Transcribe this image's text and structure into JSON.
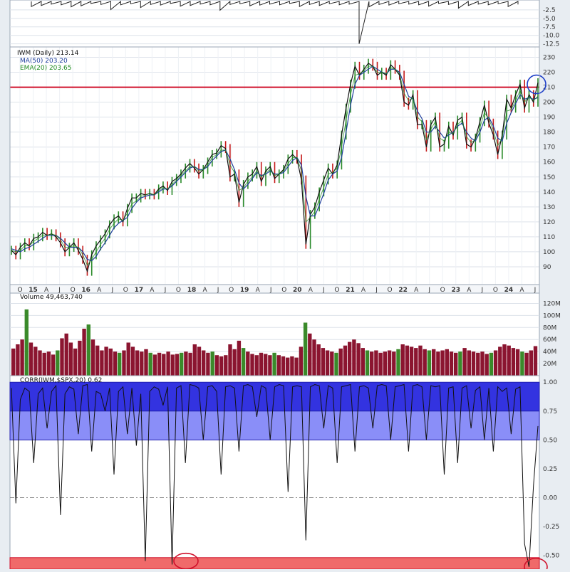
{
  "price_legend": {
    "main": "IWM (Daily) 213.14",
    "ma": "MA(50) 203.20",
    "ema": "EMA(20) 203.65"
  },
  "volume_legend": "Volume 49,463,740",
  "corr_legend": "CORR(IWM,$SPX,20) 0.62",
  "colors": {
    "panel_bg": "#ffffff",
    "outer_bg": "#e8edf2",
    "grid": "#dde2ea",
    "price_line": "#111111",
    "up_candle": "#2a8a2a",
    "down_candle": "#c41a1a",
    "ma_line": "#1f3f9c",
    "ema_line": "#1f8a1f",
    "resistance_line": "#d0112b",
    "highlight_circle_blue": "#1e3fc8",
    "highlight_circle_red": "#d0112b",
    "volume_bar": "#8b1530",
    "volume_up": "#3a8a2a",
    "corr_line": "#111111",
    "corr_band_strong": "#3333e0",
    "corr_band_mid": "#8a8ef8",
    "corr_band_low": "#f06a6a"
  },
  "chart_data": [
    {
      "type": "line",
      "panel": "price",
      "x": [
        "2014-09",
        "2014-10",
        "2014-11",
        "2014-12",
        "2015-01",
        "2015-02",
        "2015-03",
        "2015-04",
        "2015-05",
        "2015-06",
        "2015-07",
        "2015-08",
        "2015-09",
        "2015-10",
        "2015-11",
        "2015-12",
        "2016-01",
        "2016-02",
        "2016-03",
        "2016-04",
        "2016-05",
        "2016-06",
        "2016-07",
        "2016-08",
        "2016-09",
        "2016-10",
        "2016-11",
        "2016-12",
        "2017-01",
        "2017-02",
        "2017-03",
        "2017-04",
        "2017-05",
        "2017-06",
        "2017-07",
        "2017-08",
        "2017-09",
        "2017-10",
        "2017-11",
        "2017-12",
        "2018-01",
        "2018-02",
        "2018-03",
        "2018-04",
        "2018-05",
        "2018-06",
        "2018-07",
        "2018-08",
        "2018-09",
        "2018-10",
        "2018-11",
        "2018-12",
        "2019-01",
        "2019-02",
        "2019-03",
        "2019-04",
        "2019-05",
        "2019-06",
        "2019-07",
        "2019-08",
        "2019-09",
        "2019-10",
        "2019-11",
        "2019-12",
        "2020-01",
        "2020-02",
        "2020-03",
        "2020-04",
        "2020-05",
        "2020-06",
        "2020-07",
        "2020-08",
        "2020-09",
        "2020-10",
        "2020-11",
        "2020-12",
        "2021-01",
        "2021-02",
        "2021-03",
        "2021-04",
        "2021-05",
        "2021-06",
        "2021-07",
        "2021-08",
        "2021-09",
        "2021-10",
        "2021-11",
        "2021-12",
        "2022-01",
        "2022-02",
        "2022-03",
        "2022-04",
        "2022-05",
        "2022-06",
        "2022-07",
        "2022-08",
        "2022-09",
        "2022-10",
        "2022-11",
        "2022-12",
        "2023-01",
        "2023-02",
        "2023-03",
        "2023-04",
        "2023-05",
        "2023-06",
        "2023-07",
        "2023-08",
        "2023-09",
        "2023-10",
        "2023-11",
        "2023-12",
        "2024-01",
        "2024-02",
        "2024-03",
        "2024-04",
        "2024-05",
        "2024-06",
        "2024-07"
      ],
      "series": [
        {
          "name": "IWM (Daily) 213.14",
          "values": [
            101,
            98,
            103,
            106,
            104,
            109,
            110,
            113,
            111,
            112,
            110,
            106,
            100,
            103,
            106,
            101,
            95,
            87,
            98,
            104,
            108,
            112,
            118,
            122,
            124,
            120,
            129,
            136,
            136,
            139,
            138,
            139,
            138,
            142,
            144,
            141,
            147,
            149,
            152,
            156,
            159,
            156,
            152,
            155,
            160,
            165,
            166,
            171,
            169,
            150,
            152,
            133,
            145,
            150,
            152,
            157,
            147,
            154,
            157,
            149,
            152,
            155,
            162,
            165,
            162,
            148,
            105,
            125,
            130,
            140,
            148,
            156,
            152,
            158,
            178,
            196,
            212,
            224,
            218,
            222,
            226,
            224,
            218,
            220,
            218,
            225,
            222,
            218,
            200,
            198,
            205,
            185,
            185,
            170,
            185,
            190,
            170,
            172,
            184,
            178,
            188,
            190,
            172,
            170,
            176,
            187,
            198,
            186,
            178,
            165,
            178,
            202,
            196,
            205,
            212,
            196,
            205,
            200,
            213
          ]
        },
        {
          "name": "MA(50) 203.20",
          "values": [
            102,
            101,
            100,
            102,
            103,
            105,
            107,
            109,
            111,
            111,
            111,
            109,
            106,
            103,
            103,
            103,
            100,
            95,
            94,
            97,
            102,
            106,
            111,
            116,
            119,
            121,
            123,
            129,
            133,
            136,
            137,
            138,
            138,
            140,
            142,
            142,
            144,
            147,
            150,
            153,
            156,
            157,
            155,
            155,
            157,
            161,
            164,
            167,
            168,
            162,
            155,
            146,
            142,
            145,
            149,
            153,
            151,
            152,
            154,
            152,
            152,
            153,
            157,
            161,
            163,
            158,
            137,
            124,
            124,
            131,
            139,
            148,
            152,
            154,
            163,
            180,
            198,
            212,
            218,
            220,
            222,
            224,
            222,
            220,
            219,
            222,
            222,
            220,
            212,
            204,
            202,
            194,
            189,
            180,
            180,
            184,
            180,
            176,
            178,
            180,
            184,
            186,
            180,
            176,
            174,
            180,
            188,
            190,
            184,
            176,
            174,
            186,
            193,
            199,
            205,
            202,
            203,
            202,
            203
          ]
        },
        {
          "name": "EMA(20) 203.65",
          "values": [
            101,
            100,
            101,
            104,
            104,
            107,
            109,
            111,
            111,
            112,
            111,
            108,
            103,
            103,
            104,
            103,
            98,
            91,
            95,
            100,
            105,
            109,
            115,
            119,
            122,
            121,
            126,
            132,
            134,
            137,
            138,
            139,
            138,
            141,
            143,
            142,
            145,
            148,
            151,
            154,
            157,
            157,
            154,
            155,
            158,
            163,
            165,
            168,
            168,
            158,
            153,
            141,
            143,
            147,
            150,
            154,
            150,
            153,
            155,
            151,
            152,
            154,
            159,
            163,
            163,
            154,
            120,
            123,
            127,
            135,
            143,
            152,
            153,
            156,
            170,
            188,
            205,
            218,
            219,
            221,
            224,
            224,
            220,
            220,
            219,
            223,
            222,
            219,
            206,
            201,
            203,
            190,
            187,
            175,
            182,
            187,
            176,
            174,
            180,
            179,
            185,
            188,
            177,
            173,
            175,
            183,
            193,
            189,
            181,
            171,
            176,
            194,
            195,
            201,
            208,
            200,
            204,
            201,
            204
          ]
        }
      ],
      "ylim": [
        80,
        235
      ],
      "yticks": [
        90,
        100,
        110,
        120,
        130,
        140,
        150,
        160,
        170,
        180,
        190,
        200,
        210,
        220,
        230
      ],
      "reference_lines": [
        {
          "y": 210,
          "label": ""
        }
      ],
      "xtick_labels": [
        "O",
        "15",
        "A",
        "J",
        "O",
        "16",
        "A",
        "J",
        "O",
        "17",
        "A",
        "J",
        "O",
        "18",
        "A",
        "J",
        "O",
        "19",
        "A",
        "J",
        "O",
        "20",
        "A",
        "J",
        "O",
        "21",
        "A",
        "J",
        "O",
        "22",
        "A",
        "J",
        "O",
        "23",
        "A",
        "J",
        "O",
        "24",
        "A",
        "J"
      ]
    },
    {
      "type": "bar",
      "panel": "volume",
      "series": [
        {
          "name": "Volume 49,463,740",
          "values": [
            45,
            52,
            60,
            110,
            55,
            48,
            42,
            38,
            40,
            35,
            42,
            62,
            70,
            55,
            45,
            58,
            78,
            85,
            60,
            50,
            42,
            48,
            45,
            40,
            38,
            42,
            55,
            48,
            42,
            40,
            44,
            38,
            35,
            38,
            36,
            40,
            35,
            36,
            38,
            40,
            38,
            52,
            48,
            42,
            38,
            40,
            34,
            32,
            34,
            52,
            44,
            58,
            46,
            40,
            36,
            34,
            38,
            36,
            34,
            38,
            34,
            32,
            30,
            32,
            30,
            48,
            88,
            70,
            60,
            52,
            46,
            42,
            40,
            38,
            45,
            50,
            56,
            60,
            54,
            46,
            42,
            40,
            42,
            38,
            40,
            42,
            40,
            44,
            52,
            50,
            48,
            46,
            50,
            44,
            42,
            44,
            40,
            42,
            44,
            40,
            38,
            40,
            46,
            42,
            40,
            38,
            40,
            36,
            38,
            42,
            48,
            52,
            50,
            46,
            44,
            40,
            38,
            42,
            49
          ]
        }
      ],
      "ylim": [
        0,
        130
      ],
      "yticks": [
        20,
        40,
        60,
        80,
        100,
        120
      ],
      "ytick_labels": [
        "20M",
        "40M",
        "60M",
        "80M",
        "100M",
        "120M"
      ]
    },
    {
      "type": "line",
      "panel": "correlation",
      "series": [
        {
          "name": "CORR(IWM,$SPX,20) 0.62",
          "values": [
            0.95,
            -0.05,
            0.85,
            0.95,
            0.92,
            0.3,
            0.9,
            0.95,
            0.6,
            0.92,
            0.97,
            -0.15,
            0.9,
            0.96,
            0.94,
            0.55,
            0.97,
            0.98,
            0.4,
            0.92,
            0.9,
            0.75,
            0.95,
            0.2,
            0.92,
            0.96,
            0.55,
            0.95,
            0.45,
            0.9,
            -0.55,
            0.92,
            0.96,
            0.94,
            0.8,
            0.96,
            -0.58,
            0.95,
            0.97,
            0.3,
            0.98,
            0.97,
            0.95,
            0.5,
            0.96,
            0.97,
            0.92,
            0.2,
            0.96,
            0.97,
            0.95,
            0.4,
            0.97,
            0.98,
            0.96,
            0.7,
            0.97,
            0.95,
            0.5,
            0.96,
            0.98,
            0.97,
            0.05,
            0.96,
            0.97,
            0.96,
            -0.37,
            0.96,
            0.98,
            0.97,
            0.6,
            0.97,
            0.95,
            0.3,
            0.96,
            0.97,
            0.98,
            0.4,
            0.96,
            0.97,
            0.95,
            0.6,
            0.97,
            0.98,
            0.97,
            0.5,
            0.96,
            0.97,
            0.98,
            0.4,
            0.97,
            0.98,
            0.96,
            0.5,
            0.97,
            0.96,
            0.97,
            0.2,
            0.95,
            0.96,
            0.3,
            0.95,
            0.97,
            0.6,
            0.93,
            0.96,
            0.5,
            0.95,
            0.4,
            0.96,
            0.92,
            0.95,
            0.55,
            0.94,
            0.96,
            -0.4,
            -0.6,
            0.1,
            0.62
          ]
        }
      ],
      "ylim": [
        -0.62,
        1.02
      ],
      "yticks": [
        -0.5,
        -0.25,
        0.0,
        0.25,
        0.5,
        0.75,
        1.0
      ],
      "ytick_labels": [
        "-0.50",
        "-0.25",
        "0.00",
        "0.25",
        "0.50",
        "0.75",
        "1.00"
      ],
      "bands": [
        {
          "from": 0.75,
          "to": 1.0,
          "color": "corr_band_strong"
        },
        {
          "from": 0.5,
          "to": 0.75,
          "color": "corr_band_mid"
        },
        {
          "from": -0.62,
          "to": -0.52,
          "color": "corr_band_low"
        }
      ]
    },
    {
      "type": "bar",
      "panel": "top-indicator",
      "series": [
        {
          "name": "",
          "values": [
            -1.5,
            -1.2,
            -0.8,
            -1.0,
            -1.6,
            -1.3,
            -0.6,
            -0.9,
            -2.4,
            -1.0,
            -0.7,
            -1.8,
            -0.9,
            -1.1,
            -0.6,
            -1.4,
            -1.2,
            -0.8,
            -1.0,
            -2.6,
            -0.9,
            -0.7,
            -1.3,
            -1.1,
            -0.8,
            -1.0,
            -0.6,
            -1.5,
            -0.9,
            -1.2,
            -0.7,
            -1.0,
            -0.8,
            -12.5,
            -1.6,
            -0.9,
            -1.1,
            -0.7,
            -0.8,
            -1.0,
            -1.4,
            -0.6,
            -0.9,
            -2.0,
            -1.2,
            -0.8,
            -1.0,
            -0.7,
            -1.5,
            -0.9
          ]
        }
      ],
      "ylim": [
        -13,
        0
      ],
      "yticks": [
        -2.5,
        -5.0,
        -7.5,
        -10.0,
        -12.5
      ],
      "ytick_labels": [
        "-2.5",
        "-5.0",
        "-7.5",
        "-10.0",
        "-12.5"
      ]
    }
  ]
}
